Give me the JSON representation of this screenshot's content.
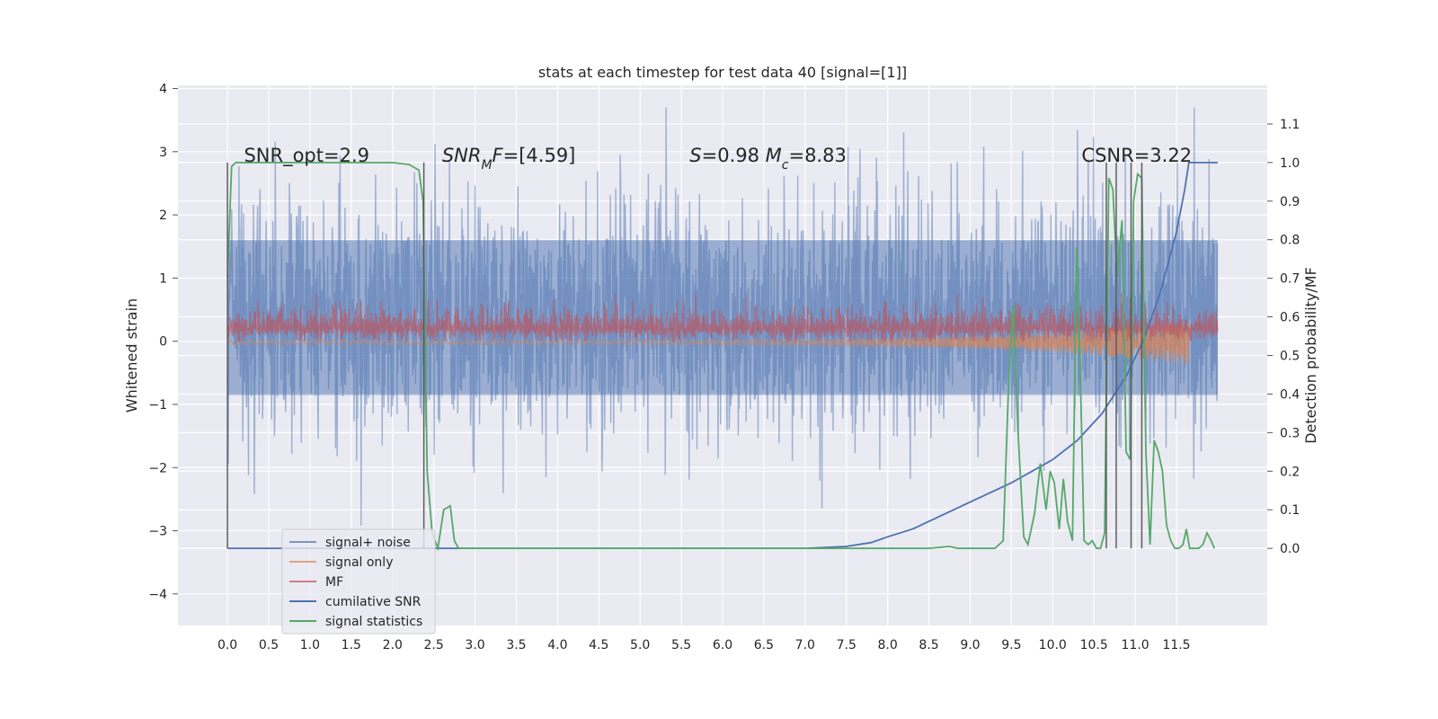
{
  "chart_data": {
    "type": "line",
    "title": "stats at each timestep for test data 40 [signal=[1]]",
    "ylabel_left": "Whitened strain",
    "ylabel_right": "Detection probability/MF",
    "xlim": [
      -0.6,
      12.6
    ],
    "ylim_left": [
      -4.5,
      4.05
    ],
    "ylim_right": [
      -0.2,
      1.2
    ],
    "x_ticks": [
      0.0,
      0.5,
      1.0,
      1.5,
      2.0,
      2.5,
      3.0,
      3.5,
      4.0,
      4.5,
      5.0,
      5.5,
      6.0,
      6.5,
      7.0,
      7.5,
      8.0,
      8.5,
      9.0,
      9.5,
      10.0,
      10.5,
      11.0,
      11.5
    ],
    "x_tick_labels": [
      "0.0",
      "0.5",
      "1.0",
      "1.5",
      "2.0",
      "2.5",
      "3.0",
      "3.5",
      "4.0",
      "4.5",
      "5.0",
      "5.5",
      "6.0",
      "6.5",
      "7.0",
      "7.5",
      "8.0",
      "8.5",
      "9.0",
      "9.5",
      "10.0",
      "10.5",
      "11.0",
      "11.5"
    ],
    "y_left_ticks": [
      4,
      3,
      2,
      1,
      0,
      -1,
      -2,
      -3,
      -4
    ],
    "y_left_tick_labels": [
      "4",
      "3",
      "2",
      "1",
      "0",
      "−1",
      "−2",
      "−3",
      "−4"
    ],
    "y_right_ticks": [
      1.1,
      1.0,
      0.9,
      0.8,
      0.7,
      0.6,
      0.5,
      0.4,
      0.3,
      0.2,
      0.1,
      0.0
    ],
    "y_right_tick_labels": [
      "1.1",
      "1.0",
      "0.9",
      "0.8",
      "0.7",
      "0.6",
      "0.5",
      "0.4",
      "0.3",
      "0.2",
      "0.1",
      "0.0"
    ],
    "grid": true,
    "legend_position": "bottom-left",
    "annotations": [
      {
        "parts": [
          {
            "t": "SNR_opt=2.9"
          }
        ],
        "x": 0.2,
        "y": 1.0
      },
      {
        "parts": [
          {
            "t": "SNR",
            "style": "italic"
          },
          {
            "t": "M",
            "style": "italic",
            "sub": true
          },
          {
            "t": "F",
            "style": "italic"
          },
          {
            "t": "=[4.59]"
          }
        ],
        "x": 2.6,
        "y": 1.0
      },
      {
        "parts": [
          {
            "t": "S",
            "style": "italic"
          },
          {
            "t": "=0.98   "
          },
          {
            "t": "M",
            "style": "italic"
          },
          {
            "t": "c",
            "style": "italic",
            "sub": true
          },
          {
            "t": "=8.83"
          }
        ],
        "x": 5.6,
        "y": 1.0
      },
      {
        "parts": [
          {
            "t": "CSNR=3.22"
          }
        ],
        "x": 10.35,
        "y": 1.0
      }
    ],
    "vertical_markers": [
      {
        "x": 0.0,
        "y_range": [
          0.0,
          1.0
        ]
      },
      {
        "x": 2.38,
        "y_range": [
          0.0,
          1.0
        ]
      },
      {
        "x": 10.65,
        "y_range": [
          0.0,
          1.0
        ]
      },
      {
        "x": 10.77,
        "y_range": [
          0.0,
          1.0
        ]
      },
      {
        "x": 10.95,
        "y_range": [
          0.0,
          1.0
        ]
      },
      {
        "x": 11.08,
        "y_range": [
          0.0,
          1.0
        ]
      }
    ],
    "series": [
      {
        "name": "signal+ noise",
        "axis": "left",
        "style": "noise",
        "color": "#4c72b0",
        "alpha": 0.5,
        "x_range": [
          0.0,
          12.0
        ],
        "sigma": 1.0,
        "band_left": [
          -0.85,
          1.6
        ]
      },
      {
        "name": "signal only",
        "axis": "left",
        "style": "chirp",
        "color": "#dd8452",
        "alpha": 0.5,
        "x_range": [
          0.0,
          11.65
        ],
        "amplitude_start": 0.03,
        "amplitude_end": 0.35
      },
      {
        "name": "MF",
        "axis": "left",
        "style": "mf",
        "color": "#c44e52",
        "alpha": 0.5,
        "x_range": [
          0.0,
          12.0
        ],
        "baseline": 0.2,
        "amplitude": 0.18
      },
      {
        "name": "cumilative SNR",
        "axis": "right",
        "color": "#4c72b0",
        "x": [
          0.0,
          7.0,
          7.5,
          7.8,
          8.0,
          8.3,
          8.6,
          9.0,
          9.5,
          10.0,
          10.3,
          10.6,
          10.9,
          11.1,
          11.3,
          11.5,
          11.6,
          11.65,
          12.0
        ],
        "y": [
          0.0,
          0.0,
          0.005,
          0.015,
          0.03,
          0.05,
          0.08,
          0.12,
          0.17,
          0.23,
          0.28,
          0.35,
          0.45,
          0.54,
          0.66,
          0.82,
          0.93,
          1.0,
          1.0
        ]
      },
      {
        "name": "signal statistics",
        "axis": "right",
        "color": "#55a868",
        "x": [
          0.0,
          0.05,
          0.1,
          0.5,
          1.0,
          1.5,
          1.8,
          2.0,
          2.2,
          2.32,
          2.37,
          2.42,
          2.48,
          2.55,
          2.62,
          2.7,
          2.75,
          2.8,
          2.9,
          3.5,
          4.5,
          5.5,
          6.5,
          7.5,
          8.5,
          8.75,
          8.85,
          9.3,
          9.4,
          9.47,
          9.52,
          9.58,
          9.65,
          9.7,
          9.78,
          9.85,
          9.92,
          9.97,
          10.02,
          10.08,
          10.13,
          10.18,
          10.24,
          10.29,
          10.33,
          10.38,
          10.43,
          10.48,
          10.53,
          10.58,
          10.63,
          10.68,
          10.73,
          10.78,
          10.84,
          10.89,
          10.94,
          10.98,
          11.03,
          11.08,
          11.13,
          11.18,
          11.23,
          11.28,
          11.33,
          11.38,
          11.43,
          11.48,
          11.53,
          11.58,
          11.62,
          11.66,
          11.72,
          11.77,
          11.82,
          11.87,
          11.92,
          11.96
        ],
        "y": [
          0.7,
          0.99,
          1.0,
          1.0,
          1.0,
          1.0,
          1.0,
          1.0,
          0.995,
          0.98,
          0.9,
          0.2,
          0.04,
          0.0,
          0.1,
          0.11,
          0.02,
          0.0,
          0.0,
          0.0,
          0.0,
          0.0,
          0.0,
          0.0,
          0.0,
          0.005,
          0.0,
          0.0,
          0.02,
          0.45,
          0.63,
          0.3,
          0.03,
          0.01,
          0.09,
          0.22,
          0.1,
          0.2,
          0.17,
          0.05,
          0.18,
          0.07,
          0.02,
          0.78,
          0.5,
          0.02,
          0.01,
          0.02,
          0.0,
          0.0,
          0.04,
          0.96,
          0.93,
          0.7,
          0.85,
          0.25,
          0.23,
          0.9,
          0.97,
          0.96,
          0.25,
          0.01,
          0.28,
          0.25,
          0.2,
          0.06,
          0.02,
          0.0,
          0.0,
          0.01,
          0.05,
          0.0,
          0.0,
          0.0,
          0.01,
          0.04,
          0.02,
          0.0
        ]
      }
    ]
  }
}
